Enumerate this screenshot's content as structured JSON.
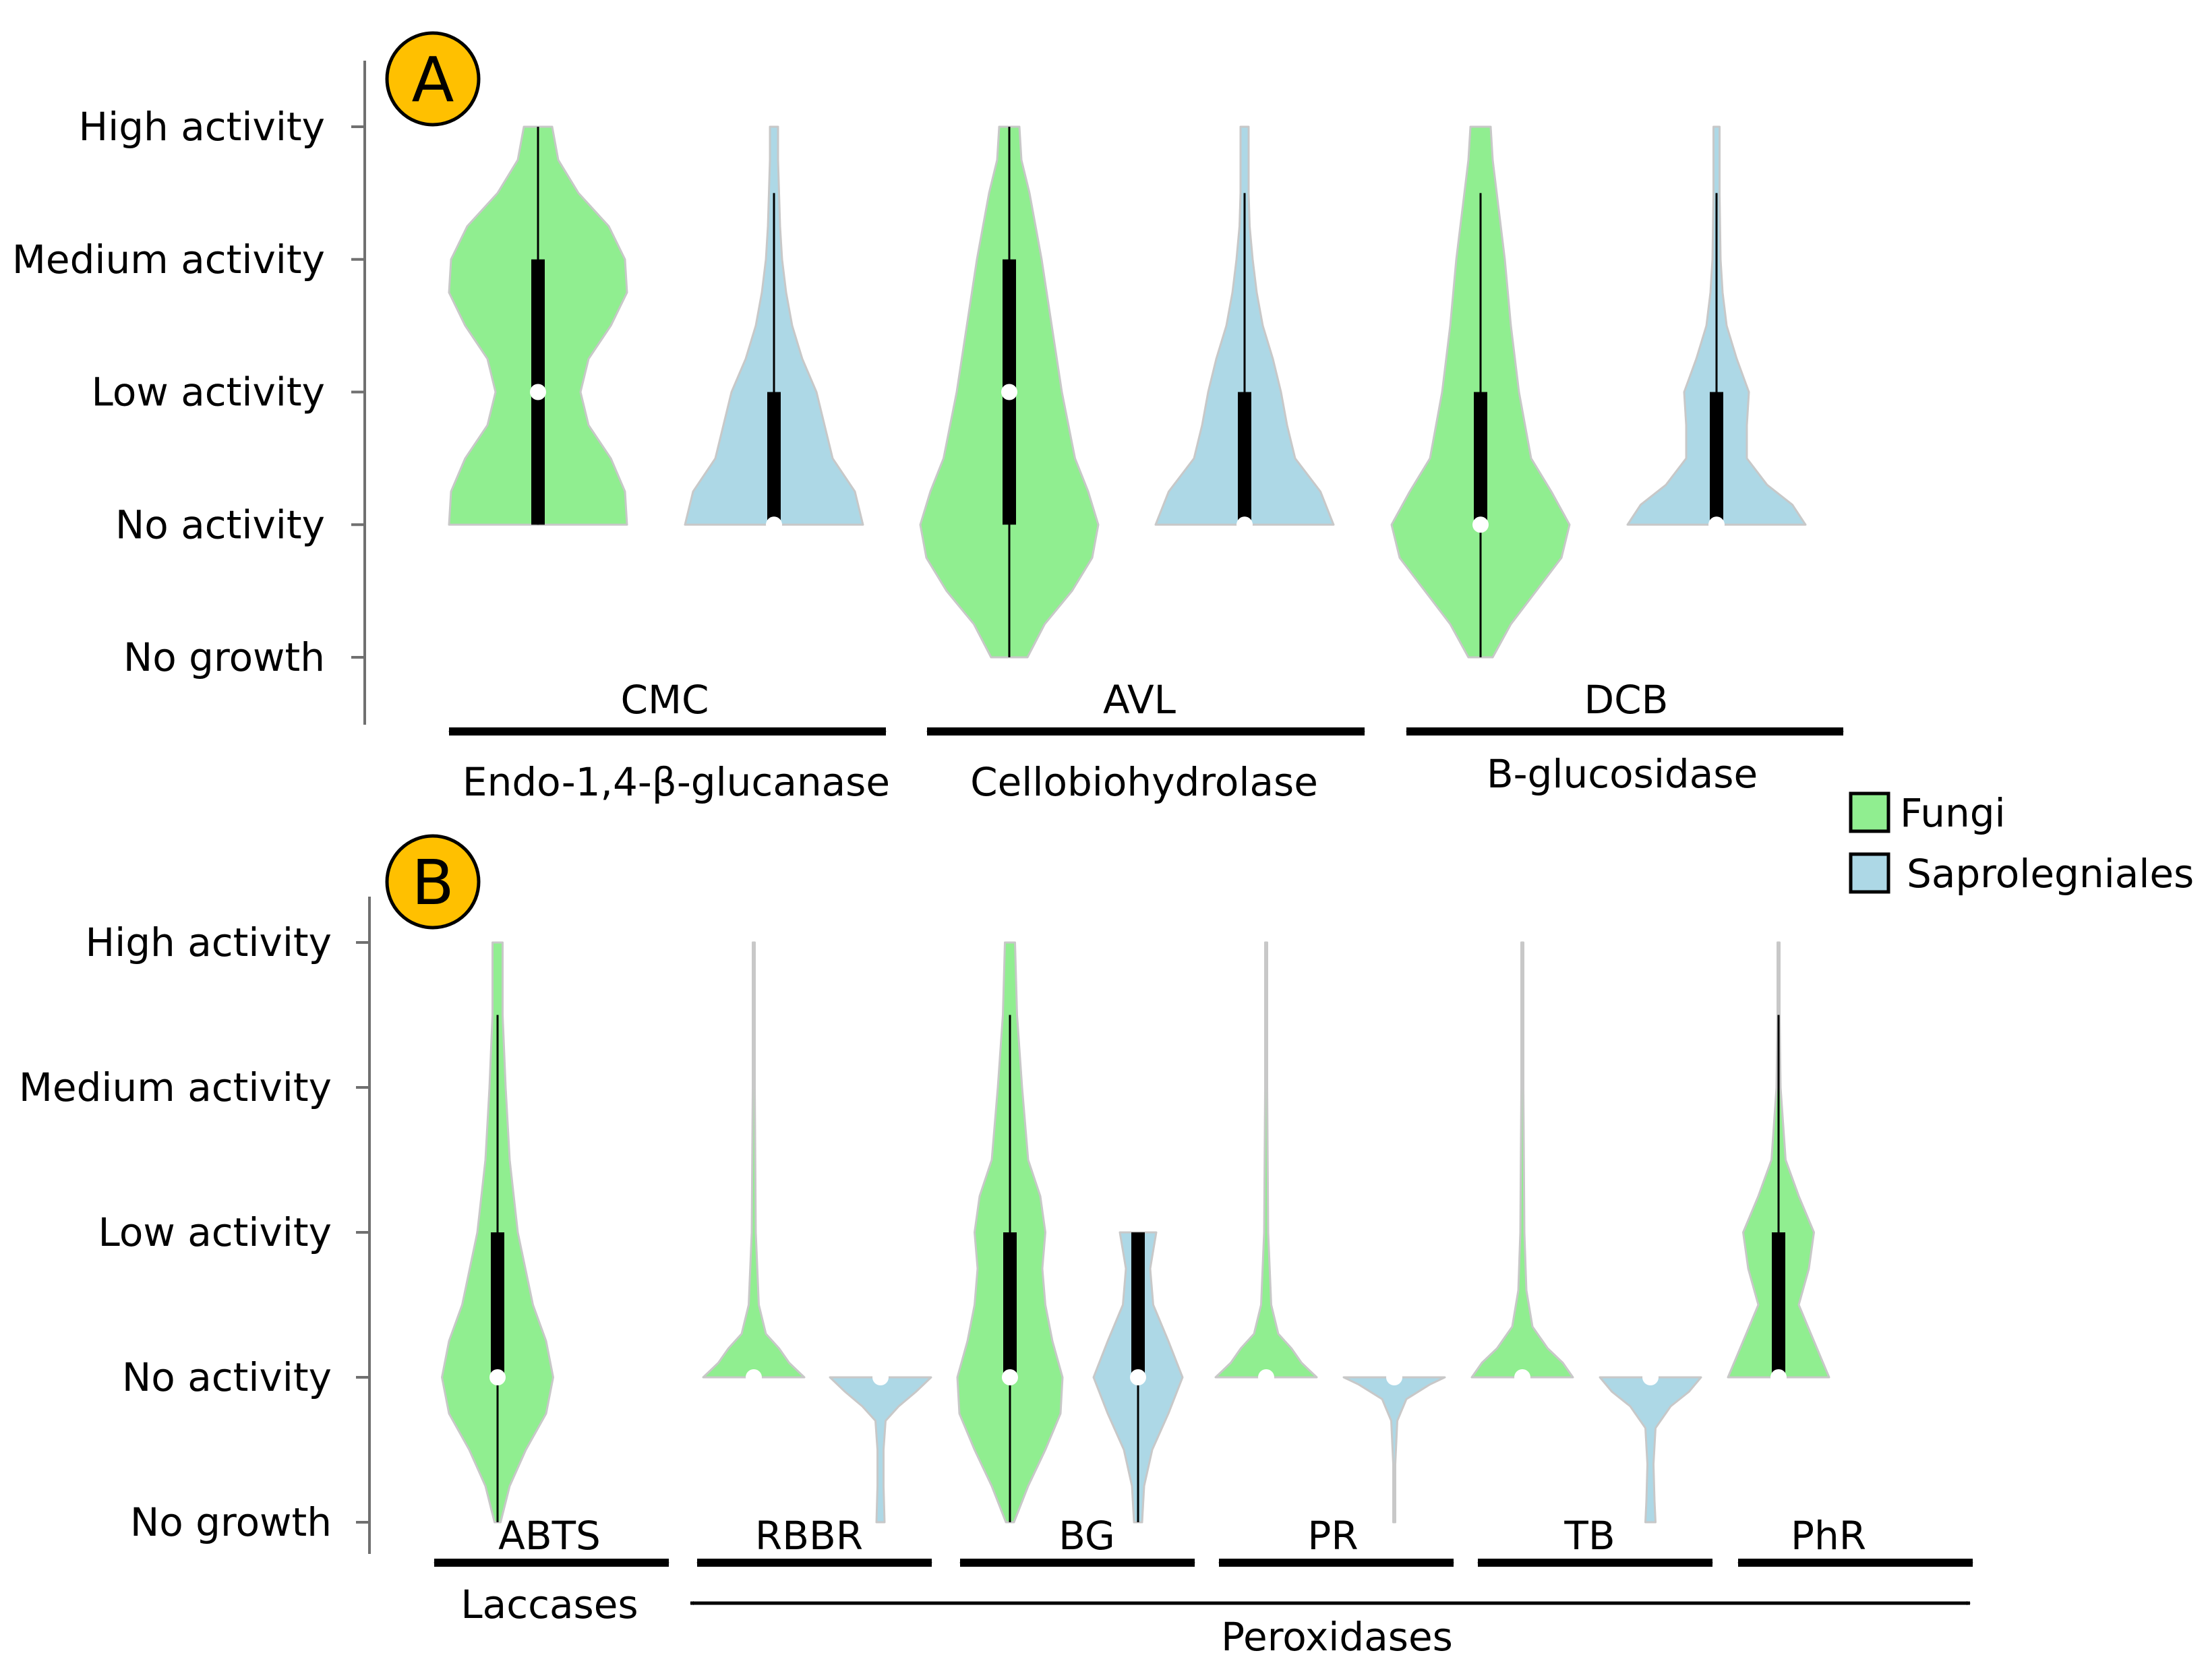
{
  "colors": {
    "fungi": "#90EE90",
    "saprolegniales": "#ADD8E6",
    "badge": "#FFC000",
    "outline": "#c8c8c8",
    "ink": "#000000"
  },
  "legend": {
    "fungi": "Fungi",
    "saprolegniales": "Saprolegniales"
  },
  "chart_data": [
    {
      "type": "violin",
      "panel": "A",
      "y_tick_labels": [
        "No growth",
        "No activity",
        "Low activity",
        "Medium activity",
        "High activity"
      ],
      "y_tick_values": [
        -1,
        0,
        1,
        2,
        3
      ],
      "ylim": [
        -1,
        3
      ],
      "groups": [
        {
          "substrate": "CMC",
          "enzyme": "Endo-1,4-β-glucanase"
        },
        {
          "substrate": "AVL",
          "enzyme": "Cellobiohydrolase"
        },
        {
          "substrate": "DCB",
          "enzyme": "B-glucosidase"
        }
      ],
      "violins": [
        {
          "group": "CMC",
          "series": "Fungi",
          "density": [
            [
              0,
              0.88
            ],
            [
              0.25,
              0.86
            ],
            [
              0.5,
              0.72
            ],
            [
              0.75,
              0.5
            ],
            [
              1,
              0.42
            ],
            [
              1.25,
              0.5
            ],
            [
              1.5,
              0.72
            ],
            [
              1.75,
              0.88
            ],
            [
              2,
              0.86
            ],
            [
              2.25,
              0.7
            ],
            [
              2.5,
              0.4
            ],
            [
              2.75,
              0.2
            ],
            [
              3,
              0.14
            ]
          ],
          "q1": 0,
          "median": 1,
          "q3": 2,
          "whisker_low": 0,
          "whisker_high": 3
        },
        {
          "group": "CMC",
          "series": "Saprolegniales",
          "density": [
            [
              0,
              0.88
            ],
            [
              0.25,
              0.8
            ],
            [
              0.5,
              0.58
            ],
            [
              0.75,
              0.5
            ],
            [
              1,
              0.42
            ],
            [
              1.25,
              0.28
            ],
            [
              1.5,
              0.18
            ],
            [
              1.75,
              0.12
            ],
            [
              2,
              0.08
            ],
            [
              2.25,
              0.06
            ],
            [
              2.5,
              0.05
            ],
            [
              2.75,
              0.04
            ],
            [
              3,
              0.04
            ]
          ],
          "q1": 0,
          "median": 0,
          "q3": 1,
          "whisker_low": 0,
          "whisker_high": 2.5
        },
        {
          "group": "AVL",
          "series": "Fungi",
          "density": [
            [
              -1,
              0.18
            ],
            [
              -0.75,
              0.35
            ],
            [
              -0.5,
              0.62
            ],
            [
              -0.25,
              0.82
            ],
            [
              0,
              0.88
            ],
            [
              0.25,
              0.78
            ],
            [
              0.5,
              0.65
            ],
            [
              1,
              0.52
            ],
            [
              1.5,
              0.42
            ],
            [
              2,
              0.32
            ],
            [
              2.5,
              0.2
            ],
            [
              2.75,
              0.12
            ],
            [
              3,
              0.1
            ]
          ],
          "q1": 0,
          "median": 1,
          "q3": 2,
          "whisker_low": -1,
          "whisker_high": 3
        },
        {
          "group": "AVL",
          "series": "Saprolegniales",
          "density": [
            [
              0,
              0.88
            ],
            [
              0.25,
              0.75
            ],
            [
              0.5,
              0.5
            ],
            [
              0.75,
              0.42
            ],
            [
              1,
              0.36
            ],
            [
              1.25,
              0.28
            ],
            [
              1.5,
              0.18
            ],
            [
              1.75,
              0.12
            ],
            [
              2,
              0.08
            ],
            [
              2.25,
              0.05
            ],
            [
              2.5,
              0.04
            ],
            [
              2.75,
              0.04
            ],
            [
              3,
              0.04
            ]
          ],
          "q1": 0,
          "median": 0,
          "q3": 1,
          "whisker_low": 0,
          "whisker_high": 2.5
        },
        {
          "group": "DCB",
          "series": "Fungi",
          "density": [
            [
              -1,
              0.12
            ],
            [
              -0.75,
              0.3
            ],
            [
              -0.5,
              0.55
            ],
            [
              -0.25,
              0.8
            ],
            [
              0,
              0.88
            ],
            [
              0.25,
              0.7
            ],
            [
              0.5,
              0.5
            ],
            [
              1,
              0.38
            ],
            [
              1.5,
              0.3
            ],
            [
              2,
              0.24
            ],
            [
              2.5,
              0.16
            ],
            [
              2.75,
              0.12
            ],
            [
              3,
              0.1
            ]
          ],
          "q1": 0,
          "median": 0,
          "q3": 1,
          "whisker_low": -1,
          "whisker_high": 2.5
        },
        {
          "group": "DCB",
          "series": "Saprolegniales",
          "density": [
            [
              0,
              0.88
            ],
            [
              0.15,
              0.75
            ],
            [
              0.3,
              0.5
            ],
            [
              0.5,
              0.3
            ],
            [
              0.75,
              0.3
            ],
            [
              1,
              0.32
            ],
            [
              1.25,
              0.2
            ],
            [
              1.5,
              0.1
            ],
            [
              1.75,
              0.06
            ],
            [
              2,
              0.04
            ],
            [
              2.5,
              0.03
            ],
            [
              3,
              0.03
            ]
          ],
          "q1": 0,
          "median": 0,
          "q3": 1,
          "whisker_low": 0,
          "whisker_high": 2.5
        }
      ],
      "arrows": [
        "CMC",
        "AVL",
        "DCB"
      ]
    },
    {
      "type": "violin",
      "panel": "B",
      "y_tick_labels": [
        "No growth",
        "No activity",
        "Low activity",
        "Medium activity",
        "High activity"
      ],
      "y_tick_values": [
        -1,
        0,
        1,
        2,
        3
      ],
      "ylim": [
        -1,
        3
      ],
      "groups": [
        {
          "substrate": "ABTS"
        },
        {
          "substrate": "RBBR"
        },
        {
          "substrate": "BG"
        },
        {
          "substrate": "PR"
        },
        {
          "substrate": "TB"
        },
        {
          "substrate": "PhR"
        }
      ],
      "violins": [
        {
          "group": "ABTS",
          "series": "Fungi",
          "density": [
            [
              -1,
              0.03
            ],
            [
              -0.75,
              0.12
            ],
            [
              -0.5,
              0.28
            ],
            [
              -0.25,
              0.48
            ],
            [
              0,
              0.55
            ],
            [
              0.25,
              0.48
            ],
            [
              0.5,
              0.35
            ],
            [
              1,
              0.2
            ],
            [
              1.5,
              0.12
            ],
            [
              2,
              0.08
            ],
            [
              2.5,
              0.05
            ],
            [
              3,
              0.05
            ]
          ],
          "q1": 0,
          "median": 0,
          "q3": 1,
          "whisker_low": -1,
          "whisker_high": 2.5
        },
        {
          "group": "RBBR",
          "series": "Fungi",
          "density": [
            [
              0,
              0.5
            ],
            [
              0.1,
              0.35
            ],
            [
              0.2,
              0.25
            ],
            [
              0.3,
              0.12
            ],
            [
              0.5,
              0.05
            ],
            [
              1,
              0.02
            ],
            [
              2,
              0.01
            ],
            [
              3,
              0.01
            ]
          ],
          "q1": 0,
          "median": 0,
          "q3": 0,
          "whisker_low": 0,
          "whisker_high": 0
        },
        {
          "group": "RBBR",
          "series": "Saprolegniales",
          "density": [
            [
              0,
              0.5
            ],
            [
              -0.1,
              0.35
            ],
            [
              -0.2,
              0.18
            ],
            [
              -0.3,
              0.05
            ],
            [
              -0.5,
              0.03
            ],
            [
              -0.75,
              0.03
            ],
            [
              -1,
              0.04
            ]
          ],
          "q1": 0,
          "median": 0,
          "q3": 0,
          "whisker_low": 0,
          "whisker_high": 0
        },
        {
          "group": "BG",
          "series": "Fungi",
          "density": [
            [
              -1,
              0.04
            ],
            [
              -0.75,
              0.18
            ],
            [
              -0.5,
              0.35
            ],
            [
              -0.25,
              0.5
            ],
            [
              0,
              0.52
            ],
            [
              0.25,
              0.42
            ],
            [
              0.5,
              0.35
            ],
            [
              0.75,
              0.32
            ],
            [
              1,
              0.35
            ],
            [
              1.25,
              0.3
            ],
            [
              1.5,
              0.18
            ],
            [
              2,
              0.12
            ],
            [
              2.5,
              0.07
            ],
            [
              3,
              0.05
            ]
          ],
          "q1": 0,
          "median": 0,
          "q3": 1,
          "whisker_low": -1,
          "whisker_high": 2.5
        },
        {
          "group": "BG",
          "series": "Saprolegniales",
          "density": [
            [
              -1,
              0.04
            ],
            [
              -0.75,
              0.06
            ],
            [
              -0.5,
              0.14
            ],
            [
              -0.25,
              0.3
            ],
            [
              0,
              0.44
            ],
            [
              0.25,
              0.3
            ],
            [
              0.5,
              0.15
            ],
            [
              0.75,
              0.12
            ],
            [
              1,
              0.18
            ]
          ],
          "q1": 0,
          "median": 0,
          "q3": 1,
          "whisker_low": -1,
          "whisker_high": 1
        },
        {
          "group": "PR",
          "series": "Fungi",
          "density": [
            [
              0,
              0.5
            ],
            [
              0.1,
              0.35
            ],
            [
              0.2,
              0.25
            ],
            [
              0.3,
              0.12
            ],
            [
              0.5,
              0.05
            ],
            [
              1,
              0.02
            ],
            [
              2,
              0.01
            ],
            [
              3,
              0.01
            ]
          ],
          "q1": 0,
          "median": 0,
          "q3": 0,
          "whisker_low": 0,
          "whisker_high": 0
        },
        {
          "group": "PR",
          "series": "Saprolegniales",
          "density": [
            [
              0,
              0.5
            ],
            [
              -0.05,
              0.35
            ],
            [
              -0.15,
              0.12
            ],
            [
              -0.3,
              0.03
            ],
            [
              -0.6,
              0.01
            ],
            [
              -1,
              0.01
            ]
          ],
          "q1": 0,
          "median": 0,
          "q3": 0,
          "whisker_low": 0,
          "whisker_high": 0
        },
        {
          "group": "TB",
          "series": "Fungi",
          "density": [
            [
              0,
              0.5
            ],
            [
              0.1,
              0.4
            ],
            [
              0.2,
              0.25
            ],
            [
              0.35,
              0.1
            ],
            [
              0.6,
              0.04
            ],
            [
              1,
              0.02
            ],
            [
              2,
              0.01
            ],
            [
              3,
              0.01
            ]
          ],
          "q1": 0,
          "median": 0,
          "q3": 0,
          "whisker_low": 0,
          "whisker_high": 0
        },
        {
          "group": "TB",
          "series": "Saprolegniales",
          "density": [
            [
              0,
              0.5
            ],
            [
              -0.1,
              0.38
            ],
            [
              -0.2,
              0.2
            ],
            [
              -0.35,
              0.05
            ],
            [
              -0.6,
              0.03
            ],
            [
              -0.85,
              0.04
            ],
            [
              -1,
              0.05
            ]
          ],
          "q1": 0,
          "median": 0,
          "q3": 0,
          "whisker_low": 0,
          "whisker_high": 0
        },
        {
          "group": "PhR",
          "series": "Fungi",
          "density": [
            [
              0,
              0.5
            ],
            [
              0.25,
              0.35
            ],
            [
              0.5,
              0.2
            ],
            [
              0.75,
              0.3
            ],
            [
              1,
              0.35
            ],
            [
              1.25,
              0.2
            ],
            [
              1.5,
              0.07
            ],
            [
              2,
              0.02
            ],
            [
              2.5,
              0.01
            ],
            [
              3,
              0.01
            ]
          ],
          "q1": 0,
          "median": 0,
          "q3": 1,
          "whisker_low": 0,
          "whisker_high": 2.5
        }
      ],
      "arrows": [
        "ABTS",
        "RBBR",
        "BG",
        "PR",
        "TB",
        "PhR"
      ],
      "enzyme_labels": {
        "laccases": "Laccases",
        "peroxidases": "Peroxidases"
      }
    }
  ]
}
